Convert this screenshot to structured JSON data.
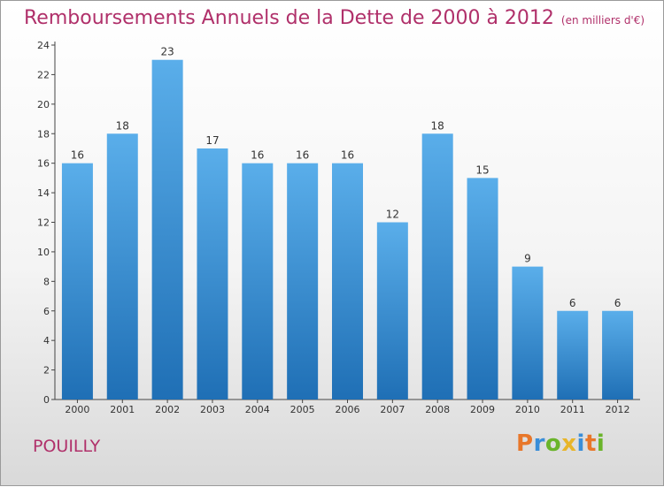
{
  "title": "Remboursements Annuels de la Dette de 2000 à 2012",
  "unit_note": "(en milliers d'€)",
  "town": "POUILLY",
  "logo": {
    "letters": [
      "P",
      "r",
      "o",
      "x",
      "i",
      "t",
      "i"
    ],
    "colors": [
      "#e8772a",
      "#3a8ed8",
      "#6ab42a",
      "#e8b52a",
      "#3a8ed8",
      "#e8772a",
      "#6ab42a"
    ]
  },
  "colors": {
    "title": "#b0306a",
    "bar_top": "#5aaeea",
    "bar_bottom": "#1f6fb5"
  },
  "chart_data": {
    "type": "bar",
    "categories": [
      "2000",
      "2001",
      "2002",
      "2003",
      "2004",
      "2005",
      "2006",
      "2007",
      "2008",
      "2009",
      "2010",
      "2011",
      "2012"
    ],
    "values": [
      16,
      18,
      23,
      17,
      16,
      16,
      16,
      12,
      18,
      15,
      9,
      6,
      6
    ],
    "title": "Remboursements Annuels de la Dette de 2000 à 2012",
    "xlabel": "",
    "ylabel": "",
    "ylim": [
      0,
      24
    ],
    "yticks": [
      0,
      2,
      4,
      6,
      8,
      10,
      12,
      14,
      16,
      18,
      20,
      22,
      24
    ],
    "grid": false,
    "data_labels": true
  }
}
